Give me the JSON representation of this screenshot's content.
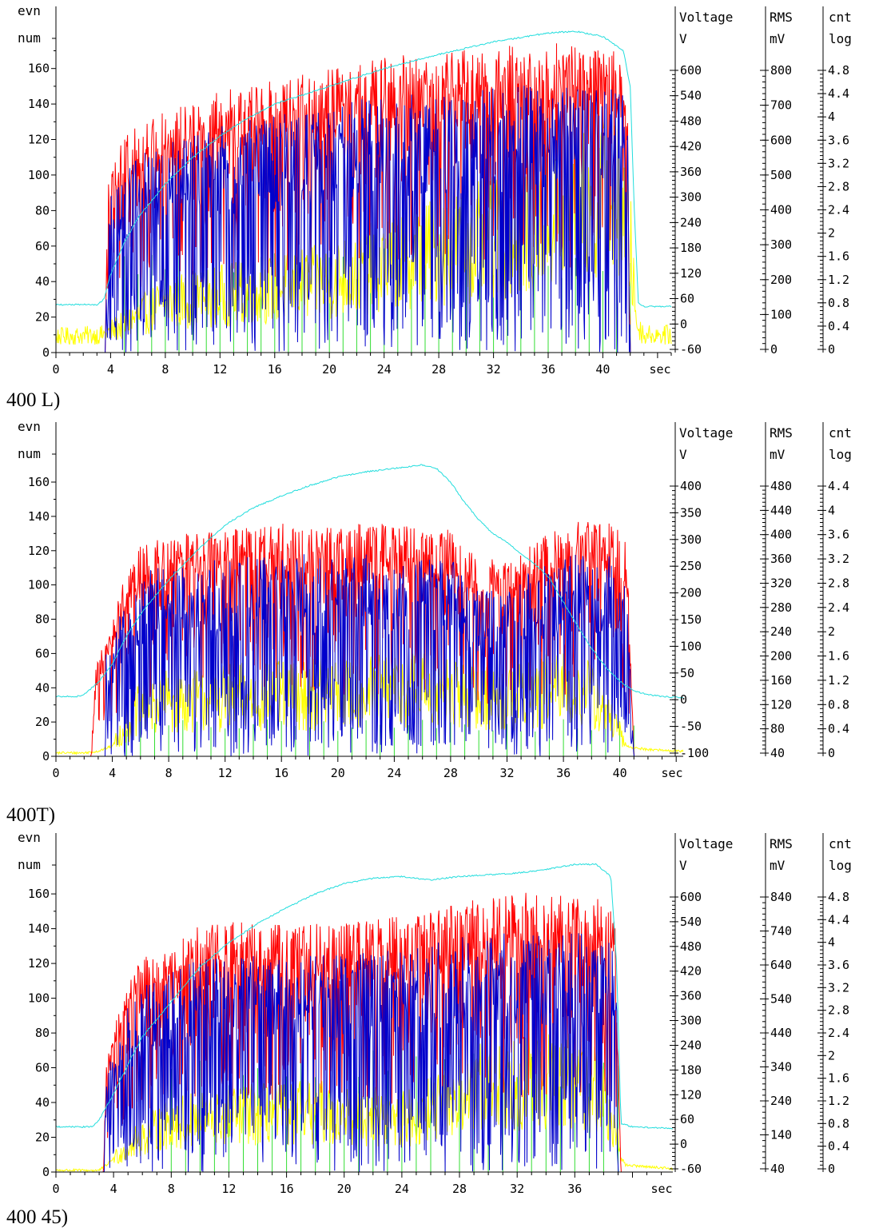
{
  "colors": {
    "background": "#ffffff",
    "axis": "#000000",
    "event_count_red": "#ff0000",
    "event_count_blue": "#0000cc",
    "voltage_cyan": "#22dddd",
    "rms_yellow": "#ffff00",
    "log_count_green": "#33dd33"
  },
  "chart_data": [
    {
      "type": "line",
      "caption": "400 L)",
      "x_unit": "sec",
      "x_ticks": [
        0,
        4,
        8,
        12,
        16,
        20,
        24,
        28,
        32,
        36,
        40
      ],
      "xlim": [
        0,
        45
      ],
      "left_axis": {
        "label_top": "evn",
        "label_bottom": "num",
        "ticks": [
          0,
          20,
          40,
          60,
          80,
          100,
          120,
          140,
          160
        ],
        "ylim": [
          0,
          195
        ]
      },
      "voltage_axis": {
        "label_top": "Voltage",
        "label_bottom": "V",
        "ticks": [
          -60,
          0,
          60,
          120,
          180,
          240,
          300,
          360,
          420,
          480,
          540,
          600
        ]
      },
      "rms_axis": {
        "label_top": "RMS",
        "label_bottom": "mV",
        "ticks": [
          0,
          100,
          200,
          300,
          400,
          500,
          600,
          700,
          800
        ]
      },
      "log_axis": {
        "label_top": "cnt",
        "label_bottom": "log",
        "ticks": [
          0,
          0.4,
          0.8,
          1.2,
          1.6,
          2,
          2.4,
          2.8,
          3.2,
          3.6,
          4,
          4.4,
          4.8
        ]
      },
      "series": [
        {
          "key": "voltage",
          "color": "#22dddd",
          "x": [
            0,
            3,
            3.5,
            4,
            5,
            6,
            8,
            10,
            12,
            14,
            16,
            18,
            20,
            24,
            28,
            32,
            36,
            38,
            40,
            41.5,
            42,
            42.3,
            42.6,
            43,
            43.5
          ],
          "y": [
            27,
            27,
            30,
            44,
            62,
            76,
            95,
            110,
            122,
            132,
            140,
            145,
            150,
            160,
            168,
            175,
            180,
            181,
            178,
            170,
            150,
            80,
            28,
            26,
            26
          ]
        },
        {
          "key": "rms",
          "color": "#ffff00",
          "level": 0.28,
          "noise": 0.1,
          "x": [
            0,
            3.5,
            4,
            6,
            8,
            12,
            16,
            20,
            24,
            28,
            32,
            36,
            38,
            40,
            41.5,
            42,
            42.5,
            43
          ],
          "y": [
            9,
            10,
            12,
            20,
            28,
            32,
            36,
            40,
            50,
            58,
            64,
            72,
            80,
            86,
            82,
            60,
            15,
            10
          ]
        },
        {
          "key": "events_red",
          "color": "#ff0000",
          "x": [
            0,
            3.6,
            3.8,
            5,
            6,
            8,
            12,
            16,
            20,
            24,
            28,
            32,
            36,
            38,
            40,
            41.5,
            41.8,
            42,
            43
          ],
          "y": [
            0,
            0,
            90,
            105,
            112,
            118,
            128,
            135,
            140,
            145,
            148,
            150,
            152,
            153,
            150,
            148,
            130,
            0,
            0
          ]
        },
        {
          "key": "events_blue",
          "color": "#0000cc",
          "start": 3.6,
          "end": 42.0
        },
        {
          "key": "log_count",
          "color": "#33dd33",
          "start": 5.0,
          "end": 42.0,
          "step": 1.0,
          "height": 50
        }
      ]
    },
    {
      "type": "line",
      "caption": "400T)",
      "x_unit": "sec",
      "x_ticks": [
        0,
        4,
        8,
        12,
        16,
        20,
        24,
        28,
        32,
        36,
        40
      ],
      "xlim": [
        0,
        44.5
      ],
      "left_axis": {
        "label_top": "evn",
        "label_bottom": "num",
        "ticks": [
          0,
          20,
          40,
          60,
          80,
          100,
          120,
          140,
          160
        ],
        "ylim": [
          0,
          195
        ]
      },
      "voltage_axis": {
        "label_top": "Voltage",
        "label_bottom": "V",
        "ticks": [
          -100,
          -50,
          0,
          50,
          100,
          150,
          200,
          250,
          300,
          350,
          400
        ]
      },
      "rms_axis": {
        "label_top": "RMS",
        "label_bottom": "mV",
        "ticks": [
          40,
          80,
          120,
          160,
          200,
          240,
          280,
          320,
          360,
          400,
          440,
          480
        ]
      },
      "log_axis": {
        "label_top": "cnt",
        "label_bottom": "log",
        "ticks": [
          0,
          0.4,
          0.8,
          1.2,
          1.6,
          2,
          2.4,
          2.8,
          3.2,
          3.6,
          4,
          4.4
        ]
      },
      "series": [
        {
          "key": "voltage",
          "color": "#22dddd",
          "x": [
            0,
            1.5,
            2,
            3,
            4,
            5,
            6,
            8,
            10,
            12,
            14,
            16,
            18,
            20,
            22,
            24,
            26,
            27,
            28,
            29,
            30,
            31,
            32,
            33,
            34,
            35,
            36,
            37,
            38,
            39,
            40,
            41,
            42,
            43,
            44.5
          ],
          "y": [
            35,
            35,
            36,
            43,
            54,
            70,
            83,
            103,
            120,
            135,
            145,
            152,
            158,
            163,
            166,
            168,
            170,
            168,
            160,
            148,
            138,
            130,
            125,
            118,
            112,
            104,
            90,
            76,
            63,
            52,
            44,
            38,
            36,
            35,
            34
          ]
        },
        {
          "key": "rms",
          "color": "#ffff00",
          "level": 0.55,
          "noise": 0.12,
          "x": [
            0,
            2,
            3,
            4,
            5,
            6,
            8,
            12,
            16,
            20,
            24,
            26,
            28,
            30,
            32,
            34,
            36,
            38,
            39.5,
            40.5,
            41,
            42,
            44.5
          ],
          "y": [
            2,
            2,
            3,
            6,
            18,
            28,
            32,
            34,
            36,
            36,
            38,
            40,
            36,
            34,
            34,
            36,
            40,
            36,
            20,
            6,
            5,
            4,
            3
          ]
        },
        {
          "key": "events_red",
          "color": "#ff0000",
          "x": [
            0,
            2.5,
            2.8,
            4,
            5,
            6,
            8,
            12,
            16,
            20,
            24,
            28,
            30,
            32,
            36,
            38,
            39.5,
            40.5,
            41,
            44.5
          ],
          "y": [
            0,
            0,
            45,
            70,
            95,
            108,
            112,
            115,
            118,
            118,
            118,
            115,
            100,
            100,
            118,
            120,
            118,
            110,
            0,
            0
          ]
        },
        {
          "key": "events_blue",
          "color": "#0000cc",
          "start": 3.5,
          "end": 41.0
        },
        {
          "key": "log_count",
          "color": "#33dd33",
          "start": 5.0,
          "end": 41.0,
          "step": 1.0,
          "height": 18
        }
      ]
    },
    {
      "type": "line",
      "caption": "400 45)",
      "x_unit": "sec",
      "x_ticks": [
        0,
        4,
        8,
        12,
        16,
        20,
        24,
        28,
        32,
        36
      ],
      "xlim": [
        0,
        42.8
      ],
      "left_axis": {
        "label_top": "evn",
        "label_bottom": "num",
        "ticks": [
          0,
          20,
          40,
          60,
          80,
          100,
          120,
          140,
          160
        ],
        "ylim": [
          0,
          195
        ]
      },
      "voltage_axis": {
        "label_top": "Voltage",
        "label_bottom": "V",
        "ticks": [
          -60,
          0,
          60,
          120,
          180,
          240,
          300,
          360,
          420,
          480,
          540,
          600
        ]
      },
      "rms_axis": {
        "label_top": "RMS",
        "label_bottom": "mV",
        "ticks": [
          40,
          140,
          240,
          340,
          440,
          540,
          640,
          740,
          840
        ]
      },
      "log_axis": {
        "label_top": "cnt",
        "label_bottom": "log",
        "ticks": [
          0,
          0.4,
          0.8,
          1.2,
          1.6,
          2,
          2.4,
          2.8,
          3.2,
          3.6,
          4,
          4.4,
          4.8
        ]
      },
      "series": [
        {
          "key": "voltage",
          "color": "#22dddd",
          "x": [
            0,
            2.5,
            3,
            4,
            5,
            6,
            8,
            10,
            12,
            14,
            16,
            18,
            20,
            22,
            24,
            26,
            28,
            30,
            32,
            34,
            36,
            37.5,
            38.5,
            38.9,
            39.2,
            40,
            42.8
          ],
          "y": [
            26,
            26,
            30,
            45,
            62,
            78,
            98,
            118,
            132,
            143,
            152,
            160,
            166,
            169,
            170,
            168,
            170,
            171,
            172,
            174,
            177,
            177,
            170,
            120,
            28,
            26,
            25
          ]
        },
        {
          "key": "rms",
          "color": "#ffff00",
          "level": 0.32,
          "noise": 0.1,
          "x": [
            0,
            3,
            3.5,
            4,
            6,
            8,
            12,
            16,
            20,
            24,
            28,
            30,
            32,
            34,
            36,
            38,
            38.8,
            39.5,
            42.8
          ],
          "y": [
            1,
            1,
            4,
            8,
            20,
            28,
            32,
            34,
            34,
            30,
            42,
            50,
            52,
            52,
            52,
            45,
            20,
            4,
            2
          ]
        },
        {
          "key": "events_red",
          "color": "#ff0000",
          "x": [
            0,
            3.3,
            3.5,
            5,
            6,
            8,
            10,
            12,
            16,
            20,
            24,
            28,
            32,
            36,
            38,
            38.8,
            39.2,
            40,
            42.8
          ],
          "y": [
            0,
            0,
            60,
            95,
            108,
            115,
            125,
            125,
            125,
            125,
            128,
            135,
            140,
            138,
            138,
            128,
            0,
            0,
            0
          ]
        },
        {
          "key": "events_blue",
          "color": "#0000cc",
          "start": 3.3,
          "end": 39.0
        },
        {
          "key": "log_count",
          "color": "#33dd33",
          "start": 8.0,
          "end": 39.0,
          "step": 1.0,
          "height": 60
        }
      ]
    }
  ]
}
